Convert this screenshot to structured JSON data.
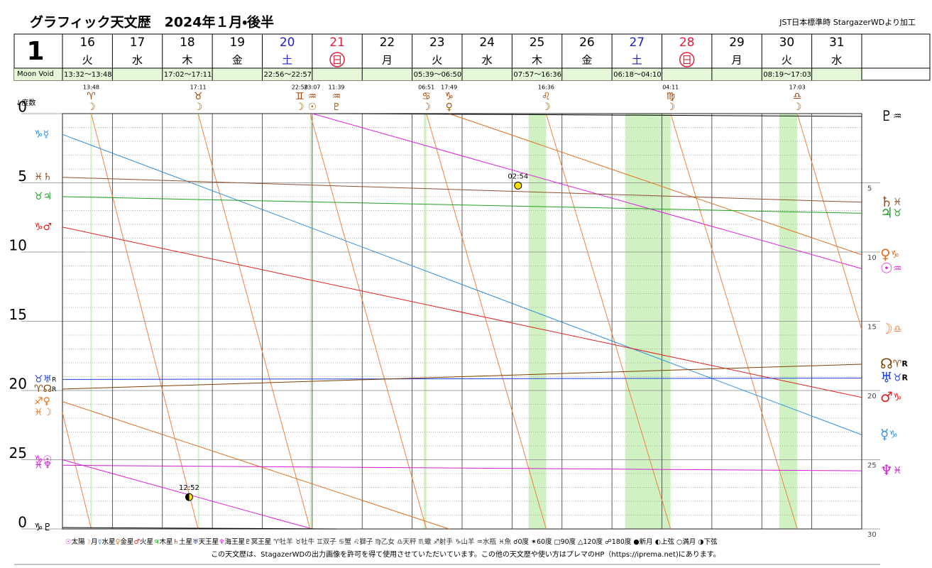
{
  "header": {
    "title": "グラフィック天文歴　2024年１月・後半",
    "note": "JST日本標準時 StargazerWDより加工",
    "month": "1",
    "void_label": "Moon Void",
    "degree_label": "↓度数",
    "footer": "この天文歴は、StagazerWDの出力画像を許可を得て使用させていただいています。この他の天文歴や使い方はプレマのHP（https://iprema.net)にあります。"
  },
  "calendar": {
    "days": [
      {
        "day": "16",
        "weekday": "火",
        "color": "#000000",
        "void": "13:32～13:48"
      },
      {
        "day": "17",
        "weekday": "水",
        "color": "#000000",
        "void": null
      },
      {
        "day": "18",
        "weekday": "木",
        "color": "#000000",
        "void": "17:02～17:11"
      },
      {
        "day": "19",
        "weekday": "金",
        "color": "#000000",
        "void": null
      },
      {
        "day": "20",
        "weekday": "土",
        "color": "#2020d0",
        "void": "22:56～22:57"
      },
      {
        "day": "21",
        "weekday": "日",
        "color": "#e0203a",
        "void": null,
        "circled": true
      },
      {
        "day": "22",
        "weekday": "月",
        "color": "#000000",
        "void": null
      },
      {
        "day": "23",
        "weekday": "火",
        "color": "#000000",
        "void": "05:39～06:50"
      },
      {
        "day": "24",
        "weekday": "水",
        "color": "#000000",
        "void": null
      },
      {
        "day": "25",
        "weekday": "木",
        "color": "#000000",
        "void": "07:57～16:36"
      },
      {
        "day": "26",
        "weekday": "金",
        "color": "#000000",
        "void": null
      },
      {
        "day": "27",
        "weekday": "土",
        "color": "#2020d0",
        "void": "06:18～04:10"
      },
      {
        "day": "28",
        "weekday": "日",
        "color": "#e0203a",
        "void": null,
        "circled": true
      },
      {
        "day": "29",
        "weekday": "月",
        "color": "#000000",
        "void": null
      },
      {
        "day": "30",
        "weekday": "火",
        "color": "#000000",
        "void": "08:19～17:03"
      },
      {
        "day": "31",
        "weekday": "水",
        "color": "#000000",
        "void": null
      }
    ]
  },
  "chart_data": {
    "type": "line",
    "xlim": [
      16,
      32
    ],
    "xticks": [
      16,
      17,
      18,
      19,
      20,
      21,
      22,
      23,
      24,
      25,
      26,
      27,
      28,
      29,
      30,
      31,
      32
    ],
    "ylim": [
      30,
      0
    ],
    "yticks": [
      0,
      5,
      10,
      15,
      20,
      25,
      {
        "value": 30,
        "label": "0"
      }
    ],
    "y2lim": [
      30,
      0
    ],
    "y2ticks": [
      5,
      10,
      15,
      20,
      25,
      30
    ],
    "minor_yticks": [
      1,
      2,
      3,
      4,
      6,
      7,
      8,
      9,
      11,
      12,
      13,
      14,
      16,
      17,
      18,
      19,
      21,
      22,
      23,
      24,
      26,
      27,
      28,
      29
    ],
    "grid": true,
    "void_bands": [
      [
        16.56,
        16.575
      ],
      [
        18.71,
        18.716
      ],
      [
        20.955,
        20.957
      ],
      [
        23.235,
        23.285
      ],
      [
        25.331,
        25.683
      ],
      [
        27.2625,
        28.174
      ],
      [
        30.347,
        30.71
      ]
    ],
    "series": [
      {
        "name": "太陽",
        "symbol": "☉",
        "color": "#e020e0",
        "sign_start": "♑",
        "sign_end": "♒",
        "x": [
          16,
          21,
          null,
          21,
          32
        ],
        "values": [
          25.0,
          30,
          null,
          0,
          11.2
        ]
      },
      {
        "name": "月",
        "symbol": "☽",
        "color": "#f08040",
        "sign_start": "♓",
        "sign_end": "♎",
        "x": [
          16,
          16.575,
          null,
          16.575,
          18.716,
          null,
          18.716,
          20.957,
          null,
          20.957,
          23.285,
          null,
          23.285,
          25.683,
          null,
          25.683,
          28.174,
          null,
          28.174,
          30.71,
          null,
          30.71,
          32
        ],
        "values": [
          21.6,
          30,
          null,
          0,
          30,
          null,
          0,
          30,
          null,
          0,
          30,
          null,
          0,
          30,
          null,
          0,
          30,
          null,
          0,
          30,
          null,
          0,
          15.6
        ]
      },
      {
        "name": "水星",
        "symbol": "☿",
        "color": "#3090e0",
        "sign_start": "♑",
        "sign_end": "♑",
        "x": [
          16,
          32
        ],
        "values": [
          1.5,
          23.2
        ]
      },
      {
        "name": "金星",
        "symbol": "♀",
        "color": "#e07020",
        "sign_start": "♐",
        "sign_end": "♑",
        "x": [
          16,
          23.74,
          null,
          23.74,
          32
        ],
        "values": [
          20.8,
          30,
          null,
          0,
          10.2
        ]
      },
      {
        "name": "火星",
        "symbol": "♂",
        "color": "#e02020",
        "sign_start": "♑",
        "sign_end": "♑",
        "x": [
          16,
          32
        ],
        "values": [
          8.2,
          20.5
        ]
      },
      {
        "name": "木星",
        "symbol": "♃",
        "color": "#20a020",
        "sign_start": "♉",
        "sign_end": "♉",
        "x": [
          16,
          32
        ],
        "values": [
          6.0,
          7.2
        ]
      },
      {
        "name": "土星",
        "symbol": "♄",
        "color": "#905030",
        "sign_start": "♓",
        "sign_end": "♓",
        "x": [
          16,
          32
        ],
        "values": [
          4.6,
          6.4
        ]
      },
      {
        "name": "天王星",
        "symbol": "♅",
        "color": "#2040e0",
        "sign_start": "♉",
        "sign_end": "♉",
        "retro": "R",
        "x": [
          16,
          32
        ],
        "values": [
          19.2,
          19.1
        ]
      },
      {
        "name": "海王星",
        "symbol": "♆",
        "color": "#d020d0",
        "sign_start": "♓",
        "sign_end": "♓",
        "x": [
          16,
          32
        ],
        "values": [
          25.4,
          25.8
        ]
      },
      {
        "name": "冥王星",
        "symbol": "♇",
        "color": "#000000",
        "sign_start": "♑",
        "sign_end": "♒",
        "x": [
          16,
          21.485,
          null,
          21.485,
          32
        ],
        "values": [
          29.9,
          30,
          null,
          0,
          0.2
        ]
      },
      {
        "symbol": "☊",
        "color": "#804000",
        "sign_start": "♈",
        "sign_end": "♈",
        "retro": "R",
        "x": [
          16,
          32
        ],
        "values": [
          19.9,
          18.1
        ]
      }
    ],
    "ingresses": [
      {
        "time": "13:48",
        "sign": "♈",
        "planet": "☽",
        "x": 16.575
      },
      {
        "time": "17:11",
        "sign": "♉",
        "planet": "☽",
        "x": 18.716
      },
      {
        "time": "22:58",
        "sign": "♊",
        "planet": "☽",
        "x": 20.75
      },
      {
        "time": "23:07",
        "sign": "♒",
        "planet": "☉",
        "x": 21.0
      },
      {
        "time": "11:39",
        "sign": "♒",
        "planet": "♇",
        "x": 21.485
      },
      {
        "time": "06:51",
        "sign": "♋",
        "planet": "☽",
        "x": 23.285
      },
      {
        "time": "17:49",
        "sign": "♑",
        "planet": "♀",
        "x": 23.74
      },
      {
        "time": "16:36",
        "sign": "♌",
        "planet": "☽",
        "x": 25.683
      },
      {
        "time": "04:11",
        "sign": "♍",
        "planet": "☽",
        "x": 28.174
      },
      {
        "time": "17:03",
        "sign": "♎",
        "planet": "☽",
        "x": 30.71
      }
    ],
    "phases": [
      {
        "label": "02:54",
        "x": 25.12,
        "y": 5.2,
        "kind": "full"
      },
      {
        "label": "12:52",
        "x": 18.536,
        "y": 27.7,
        "kind": "first"
      }
    ],
    "sign_legend": [
      "♈牡羊",
      "♉牡牛",
      "♊双子",
      "♋蟹",
      "♌獅子",
      "♍乙女",
      "♎天秤",
      "♏蠍",
      "♐射手",
      "♑山羊",
      "♒水瓶",
      "♓魚"
    ],
    "aspect_legend": [
      "☌0度",
      "✶60度",
      "□90度",
      "△120度",
      "☍180度",
      "●新月",
      "◐上弦",
      "○満月",
      "◑下弦"
    ]
  }
}
